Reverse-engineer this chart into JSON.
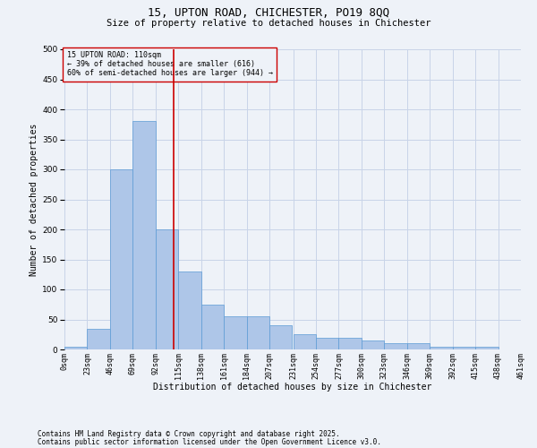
{
  "title_line1": "15, UPTON ROAD, CHICHESTER, PO19 8QQ",
  "title_line2": "Size of property relative to detached houses in Chichester",
  "xlabel": "Distribution of detached houses by size in Chichester",
  "ylabel": "Number of detached properties",
  "annotation_title": "15 UPTON ROAD: 110sqm",
  "annotation_line2": "← 39% of detached houses are smaller (616)",
  "annotation_line3": "60% of semi-detached houses are larger (944) →",
  "property_size": 110,
  "bin_edges": [
    0,
    23,
    46,
    69,
    92,
    115,
    138,
    161,
    184,
    207,
    231,
    254,
    277,
    300,
    323,
    346,
    369,
    392,
    415,
    438,
    461
  ],
  "bin_labels": [
    "0sqm",
    "23sqm",
    "46sqm",
    "69sqm",
    "92sqm",
    "115sqm",
    "138sqm",
    "161sqm",
    "184sqm",
    "207sqm",
    "231sqm",
    "254sqm",
    "277sqm",
    "300sqm",
    "323sqm",
    "346sqm",
    "369sqm",
    "392sqm",
    "415sqm",
    "438sqm",
    "461sqm"
  ],
  "bar_heights": [
    5,
    35,
    300,
    380,
    200,
    130,
    75,
    55,
    55,
    40,
    25,
    20,
    20,
    15,
    10,
    10,
    5,
    5,
    5,
    0
  ],
  "bar_color": "#aec6e8",
  "bar_edge_color": "#5b9bd5",
  "grid_color": "#c8d4e8",
  "bg_color": "#eef2f8",
  "vline_color": "#cc0000",
  "annotation_box_color": "#cc0000",
  "footnote_line1": "Contains HM Land Registry data © Crown copyright and database right 2025.",
  "footnote_line2": "Contains public sector information licensed under the Open Government Licence v3.0.",
  "ylim": [
    0,
    500
  ],
  "yticks": [
    0,
    50,
    100,
    150,
    200,
    250,
    300,
    350,
    400,
    450,
    500
  ]
}
